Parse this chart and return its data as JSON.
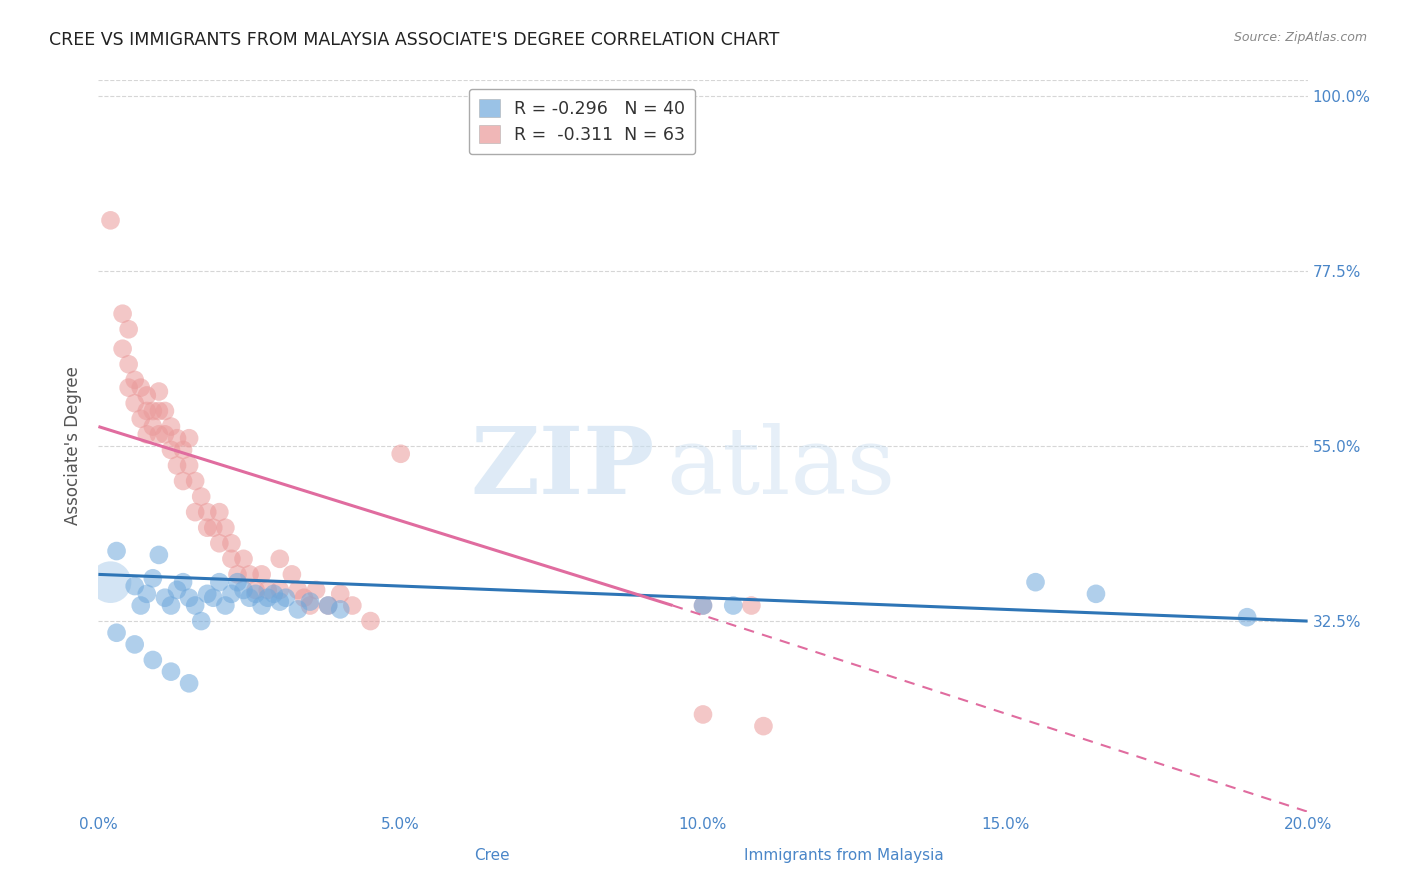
{
  "title": "CREE VS IMMIGRANTS FROM MALAYSIA ASSOCIATE'S DEGREE CORRELATION CHART",
  "source": "Source: ZipAtlas.com",
  "xlabel_cree": "Cree",
  "xlabel_immigrants": "Immigrants from Malaysia",
  "ylabel": "Associate's Degree",
  "xlim": [
    0.0,
    0.2
  ],
  "ylim": [
    0.08,
    1.02
  ],
  "yticks": [
    0.325,
    0.55,
    0.775,
    1.0
  ],
  "ytick_labels": [
    "32.5%",
    "55.0%",
    "77.5%",
    "100.0%"
  ],
  "xtick_labels": [
    "0.0%",
    "",
    "5.0%",
    "",
    "10.0%",
    "",
    "15.0%",
    "",
    "20.0%"
  ],
  "xticks": [
    0.0,
    0.025,
    0.05,
    0.075,
    0.1,
    0.125,
    0.15,
    0.175,
    0.2
  ],
  "grid_color": "#cccccc",
  "background_color": "#ffffff",
  "cree_color": "#6fa8dc",
  "immigrant_color": "#ea9999",
  "cree_R": -0.296,
  "cree_N": 40,
  "immigrant_R": -0.311,
  "immigrant_N": 63,
  "title_fontsize": 13,
  "source_fontsize": 9,
  "axis_label_color": "#4a86c8",
  "tick_label_color": "#4a86c8",
  "watermark_zip": "ZIP",
  "watermark_atlas": "atlas",
  "cree_line": {
    "x0": 0.0,
    "y0": 0.385,
    "x1": 0.2,
    "y1": 0.325
  },
  "imm_line_solid": {
    "x0": 0.0,
    "y0": 0.575,
    "x1": 0.095,
    "y1": 0.345
  },
  "imm_line_dash": {
    "x0": 0.095,
    "y1": 0.345,
    "x1": 0.2,
    "y2": 0.08
  },
  "cree_scatter": [
    [
      0.003,
      0.415
    ],
    [
      0.006,
      0.37
    ],
    [
      0.007,
      0.345
    ],
    [
      0.008,
      0.36
    ],
    [
      0.009,
      0.38
    ],
    [
      0.01,
      0.41
    ],
    [
      0.011,
      0.355
    ],
    [
      0.012,
      0.345
    ],
    [
      0.013,
      0.365
    ],
    [
      0.014,
      0.375
    ],
    [
      0.015,
      0.355
    ],
    [
      0.016,
      0.345
    ],
    [
      0.017,
      0.325
    ],
    [
      0.018,
      0.36
    ],
    [
      0.019,
      0.355
    ],
    [
      0.02,
      0.375
    ],
    [
      0.021,
      0.345
    ],
    [
      0.022,
      0.36
    ],
    [
      0.023,
      0.375
    ],
    [
      0.024,
      0.365
    ],
    [
      0.025,
      0.355
    ],
    [
      0.026,
      0.36
    ],
    [
      0.027,
      0.345
    ],
    [
      0.028,
      0.355
    ],
    [
      0.029,
      0.36
    ],
    [
      0.03,
      0.35
    ],
    [
      0.031,
      0.355
    ],
    [
      0.033,
      0.34
    ],
    [
      0.035,
      0.35
    ],
    [
      0.038,
      0.345
    ],
    [
      0.04,
      0.34
    ],
    [
      0.003,
      0.31
    ],
    [
      0.006,
      0.295
    ],
    [
      0.009,
      0.275
    ],
    [
      0.012,
      0.26
    ],
    [
      0.015,
      0.245
    ],
    [
      0.1,
      0.345
    ],
    [
      0.105,
      0.345
    ],
    [
      0.155,
      0.375
    ],
    [
      0.165,
      0.36
    ],
    [
      0.19,
      0.33
    ]
  ],
  "cree_large_bubble": [
    0.002,
    0.375
  ],
  "immigrant_scatter": [
    [
      0.002,
      0.84
    ],
    [
      0.004,
      0.72
    ],
    [
      0.005,
      0.7
    ],
    [
      0.004,
      0.675
    ],
    [
      0.005,
      0.655
    ],
    [
      0.005,
      0.625
    ],
    [
      0.006,
      0.635
    ],
    [
      0.006,
      0.605
    ],
    [
      0.007,
      0.625
    ],
    [
      0.007,
      0.585
    ],
    [
      0.008,
      0.615
    ],
    [
      0.008,
      0.595
    ],
    [
      0.008,
      0.565
    ],
    [
      0.009,
      0.595
    ],
    [
      0.009,
      0.575
    ],
    [
      0.01,
      0.62
    ],
    [
      0.01,
      0.595
    ],
    [
      0.01,
      0.565
    ],
    [
      0.011,
      0.595
    ],
    [
      0.011,
      0.565
    ],
    [
      0.012,
      0.545
    ],
    [
      0.012,
      0.575
    ],
    [
      0.013,
      0.56
    ],
    [
      0.013,
      0.525
    ],
    [
      0.014,
      0.545
    ],
    [
      0.014,
      0.505
    ],
    [
      0.015,
      0.56
    ],
    [
      0.015,
      0.525
    ],
    [
      0.016,
      0.505
    ],
    [
      0.016,
      0.465
    ],
    [
      0.017,
      0.485
    ],
    [
      0.018,
      0.465
    ],
    [
      0.018,
      0.445
    ],
    [
      0.019,
      0.445
    ],
    [
      0.02,
      0.465
    ],
    [
      0.02,
      0.425
    ],
    [
      0.021,
      0.445
    ],
    [
      0.022,
      0.425
    ],
    [
      0.022,
      0.405
    ],
    [
      0.023,
      0.385
    ],
    [
      0.024,
      0.405
    ],
    [
      0.025,
      0.385
    ],
    [
      0.026,
      0.365
    ],
    [
      0.027,
      0.385
    ],
    [
      0.028,
      0.365
    ],
    [
      0.03,
      0.405
    ],
    [
      0.03,
      0.365
    ],
    [
      0.032,
      0.385
    ],
    [
      0.033,
      0.365
    ],
    [
      0.034,
      0.355
    ],
    [
      0.035,
      0.345
    ],
    [
      0.036,
      0.365
    ],
    [
      0.038,
      0.345
    ],
    [
      0.04,
      0.36
    ],
    [
      0.042,
      0.345
    ],
    [
      0.045,
      0.325
    ],
    [
      0.05,
      0.54
    ],
    [
      0.1,
      0.345
    ],
    [
      0.108,
      0.345
    ],
    [
      0.1,
      0.205
    ],
    [
      0.11,
      0.19
    ]
  ]
}
